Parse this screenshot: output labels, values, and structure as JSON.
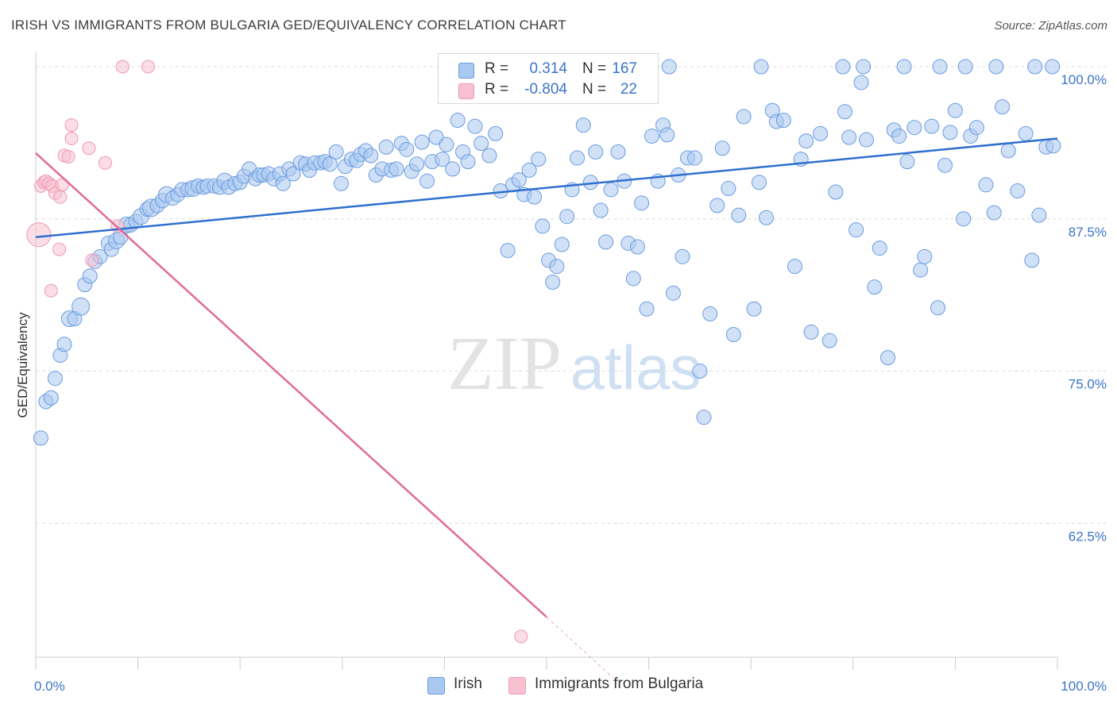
{
  "title": "IRISH VS IMMIGRANTS FROM BULGARIA GED/EQUIVALENCY CORRELATION CHART",
  "source": "Source: ZipAtlas.com",
  "watermark": {
    "zip": "ZIP",
    "atlas": "atlas"
  },
  "legend": {
    "series1": {
      "r_label": "R =",
      "r_value": "0.314",
      "n_label": "N =",
      "n_value": "167"
    },
    "series2": {
      "r_label": "R =",
      "r_value": "-0.804",
      "n_label": "N =",
      "n_value": "22"
    }
  },
  "bottom_legend": {
    "series1": "Irish",
    "series2": "Immigrants from Bulgaria"
  },
  "colors": {
    "irish_fill": "#a9c8f0",
    "irish_stroke": "#6a9be0",
    "irish_line": "#2f6fce",
    "bulgaria_fill": "#f7c1d1",
    "bulgaria_stroke": "#ef98b4",
    "bulgaria_line": "#e36b96",
    "tick_text": "#3a74c8",
    "grid": "#dcdcdc"
  },
  "chart_data": {
    "type": "scatter",
    "title": "IRISH VS IMMIGRANTS FROM BULGARIA GED/EQUIVALENCY CORRELATION CHART",
    "xlabel": "",
    "ylabel": "GED/Equivalency",
    "xlim": [
      0,
      100
    ],
    "ylim": [
      51.5,
      101.5
    ],
    "x_tick_labels": [
      {
        "value": 0,
        "label": "0.0%"
      },
      {
        "value": 100,
        "label": "100.0%"
      }
    ],
    "y_tick_labels": [
      {
        "value": 100,
        "label": "100.0%"
      },
      {
        "value": 87.5,
        "label": "87.5%"
      },
      {
        "value": 75,
        "label": "75.0%"
      },
      {
        "value": 62.5,
        "label": "62.5%"
      }
    ],
    "x_minor_ticks": [
      0,
      10,
      20,
      30,
      40,
      50,
      60,
      70,
      80,
      90,
      100
    ],
    "series": [
      {
        "name": "Irish",
        "R": 0.314,
        "N": 167,
        "trend": {
          "x": [
            0,
            100
          ],
          "y": [
            86.0,
            94.1
          ]
        },
        "points": [
          [
            0.5,
            69.5,
            9
          ],
          [
            1.0,
            72.5,
            9
          ],
          [
            1.5,
            72.8,
            9
          ],
          [
            1.9,
            74.4,
            9
          ],
          [
            2.4,
            76.3,
            9
          ],
          [
            2.8,
            77.2,
            9
          ],
          [
            3.3,
            79.3,
            10
          ],
          [
            3.8,
            79.3,
            9
          ],
          [
            4.4,
            80.3,
            11
          ],
          [
            4.8,
            82.1,
            9
          ],
          [
            5.3,
            82.8,
            9
          ],
          [
            5.8,
            84.0,
            9
          ],
          [
            6.3,
            84.4,
            9
          ],
          [
            7.1,
            85.5,
            9
          ],
          [
            7.4,
            85.0,
            9
          ],
          [
            7.9,
            85.7,
            10
          ],
          [
            8.3,
            86.0,
            9
          ],
          [
            8.9,
            87.0,
            10
          ],
          [
            9.3,
            87.0,
            9
          ],
          [
            9.8,
            87.3,
            9
          ],
          [
            10.3,
            87.7,
            10
          ],
          [
            10.9,
            88.3,
            9
          ],
          [
            11.3,
            88.4,
            11
          ],
          [
            11.9,
            88.6,
            9
          ],
          [
            12.4,
            89.0,
            9
          ],
          [
            12.8,
            89.5,
            10
          ],
          [
            13.4,
            89.2,
            9
          ],
          [
            13.9,
            89.5,
            9
          ],
          [
            14.3,
            89.9,
            9
          ],
          [
            14.9,
            89.9,
            9
          ],
          [
            15.4,
            90.0,
            10
          ],
          [
            15.9,
            90.2,
            9
          ],
          [
            16.4,
            90.1,
            9
          ],
          [
            16.8,
            90.2,
            9
          ],
          [
            17.5,
            90.2,
            9
          ],
          [
            18.0,
            90.1,
            9
          ],
          [
            18.5,
            90.6,
            10
          ],
          [
            18.9,
            90.1,
            9
          ],
          [
            19.5,
            90.4,
            9
          ],
          [
            20.0,
            90.5,
            9
          ],
          [
            20.4,
            91.0,
            9
          ],
          [
            20.9,
            91.6,
            9
          ],
          [
            21.5,
            90.8,
            9
          ],
          [
            21.9,
            91.1,
            9
          ],
          [
            22.3,
            91.1,
            9
          ],
          [
            22.8,
            91.2,
            9
          ],
          [
            23.3,
            90.8,
            9
          ],
          [
            23.9,
            91.2,
            9
          ],
          [
            24.2,
            90.4,
            9
          ],
          [
            24.8,
            91.6,
            9
          ],
          [
            25.2,
            91.2,
            9
          ],
          [
            25.9,
            92.1,
            9
          ],
          [
            26.4,
            92.0,
            9
          ],
          [
            26.8,
            91.5,
            9
          ],
          [
            27.3,
            92.1,
            9
          ],
          [
            27.9,
            92.1,
            9
          ],
          [
            28.3,
            92.2,
            9
          ],
          [
            28.8,
            92.0,
            9
          ],
          [
            29.4,
            93.0,
            9
          ],
          [
            29.9,
            90.4,
            9
          ],
          [
            30.3,
            91.8,
            9
          ],
          [
            30.9,
            92.4,
            9
          ],
          [
            31.4,
            92.3,
            9
          ],
          [
            31.8,
            92.8,
            9
          ],
          [
            32.3,
            93.1,
            9
          ],
          [
            32.8,
            92.7,
            9
          ],
          [
            33.3,
            91.1,
            9
          ],
          [
            33.9,
            91.6,
            9
          ],
          [
            34.3,
            93.4,
            9
          ],
          [
            34.8,
            91.5,
            9
          ],
          [
            35.3,
            91.6,
            9
          ],
          [
            35.8,
            93.7,
            9
          ],
          [
            36.3,
            93.2,
            9
          ],
          [
            36.8,
            91.4,
            9
          ],
          [
            37.3,
            92.0,
            9
          ],
          [
            37.8,
            93.8,
            9
          ],
          [
            38.3,
            90.6,
            9
          ],
          [
            38.8,
            92.2,
            9
          ],
          [
            39.2,
            94.2,
            9
          ],
          [
            39.8,
            92.4,
            9
          ],
          [
            40.2,
            93.6,
            9
          ],
          [
            40.8,
            91.6,
            9
          ],
          [
            41.3,
            95.6,
            9
          ],
          [
            41.8,
            93.0,
            9
          ],
          [
            42.3,
            92.2,
            9
          ],
          [
            43.0,
            95.1,
            9
          ],
          [
            43.6,
            93.7,
            9
          ],
          [
            44.4,
            92.7,
            9
          ],
          [
            45.0,
            94.5,
            9
          ],
          [
            45.5,
            89.8,
            9
          ],
          [
            46.2,
            84.9,
            9
          ],
          [
            46.7,
            90.3,
            9
          ],
          [
            47.3,
            90.7,
            9
          ],
          [
            47.8,
            89.5,
            9
          ],
          [
            48.3,
            91.5,
            9
          ],
          [
            48.8,
            89.3,
            9
          ],
          [
            49.2,
            92.4,
            9
          ],
          [
            49.6,
            86.9,
            9
          ],
          [
            50.2,
            84.1,
            9
          ],
          [
            50.6,
            82.3,
            9
          ],
          [
            51.0,
            83.6,
            9
          ],
          [
            51.5,
            85.4,
            9
          ],
          [
            52.0,
            87.7,
            9
          ],
          [
            52.5,
            89.9,
            9
          ],
          [
            53.0,
            92.5,
            9
          ],
          [
            53.6,
            95.2,
            9
          ],
          [
            54.3,
            90.5,
            9
          ],
          [
            54.8,
            93.0,
            9
          ],
          [
            55.3,
            88.2,
            9
          ],
          [
            55.8,
            85.6,
            9
          ],
          [
            56.3,
            89.9,
            9
          ],
          [
            57.0,
            93.0,
            9
          ],
          [
            57.6,
            90.6,
            9
          ],
          [
            58.0,
            85.5,
            9
          ],
          [
            58.5,
            82.6,
            9
          ],
          [
            58.9,
            85.2,
            9
          ],
          [
            59.3,
            88.8,
            9
          ],
          [
            59.8,
            80.1,
            9
          ],
          [
            60.3,
            94.3,
            9
          ],
          [
            60.9,
            90.6,
            9
          ],
          [
            61.4,
            95.2,
            9
          ],
          [
            61.8,
            94.4,
            9
          ],
          [
            62.4,
            81.4,
            9
          ],
          [
            62.9,
            91.1,
            9
          ],
          [
            63.3,
            84.4,
            9
          ],
          [
            63.8,
            92.5,
            9
          ],
          [
            64.5,
            92.5,
            9
          ],
          [
            65.0,
            75.0,
            9
          ],
          [
            65.4,
            71.2,
            9
          ],
          [
            66.0,
            79.7,
            9
          ],
          [
            66.7,
            88.6,
            9
          ],
          [
            67.2,
            93.3,
            9
          ],
          [
            67.8,
            90.0,
            9
          ],
          [
            68.3,
            78.0,
            9
          ],
          [
            68.8,
            87.8,
            9
          ],
          [
            69.3,
            95.9,
            9
          ],
          [
            70.3,
            80.1,
            9
          ],
          [
            70.8,
            90.5,
            9
          ],
          [
            71.5,
            87.6,
            9
          ],
          [
            72.1,
            96.4,
            9
          ],
          [
            72.5,
            95.5,
            9
          ],
          [
            73.2,
            95.6,
            9
          ],
          [
            74.3,
            83.6,
            9
          ],
          [
            74.9,
            92.4,
            9
          ],
          [
            75.4,
            93.9,
            9
          ],
          [
            75.9,
            78.2,
            9
          ],
          [
            76.8,
            94.5,
            9
          ],
          [
            77.7,
            77.5,
            9
          ],
          [
            78.3,
            89.7,
            9
          ],
          [
            79.2,
            96.3,
            9
          ],
          [
            79.6,
            94.2,
            9
          ],
          [
            80.3,
            86.6,
            9
          ],
          [
            80.8,
            98.7,
            9
          ],
          [
            81.3,
            94.0,
            9
          ],
          [
            82.1,
            81.9,
            9
          ],
          [
            82.6,
            85.1,
            9
          ],
          [
            83.4,
            76.1,
            9
          ],
          [
            84.0,
            94.8,
            9
          ],
          [
            84.5,
            94.3,
            9
          ],
          [
            85.3,
            92.2,
            9
          ],
          [
            86.0,
            95.0,
            9
          ],
          [
            86.6,
            83.3,
            9
          ],
          [
            87.0,
            84.4,
            9
          ],
          [
            87.7,
            95.1,
            9
          ],
          [
            88.3,
            80.2,
            9
          ],
          [
            89.0,
            91.9,
            9
          ],
          [
            89.5,
            94.6,
            9
          ],
          [
            90.0,
            96.4,
            9
          ],
          [
            90.8,
            87.5,
            9
          ],
          [
            91.5,
            94.3,
            9
          ],
          [
            92.1,
            95.0,
            9
          ],
          [
            93.0,
            90.3,
            9
          ],
          [
            93.8,
            88.0,
            9
          ],
          [
            94.6,
            96.7,
            9
          ],
          [
            95.2,
            93.1,
            9
          ],
          [
            96.1,
            89.8,
            9
          ],
          [
            96.9,
            94.5,
            9
          ],
          [
            97.5,
            84.1,
            9
          ],
          [
            98.2,
            87.8,
            9
          ],
          [
            98.9,
            93.4,
            9
          ],
          [
            99.6,
            93.5,
            9
          ],
          [
            62.0,
            100,
            9
          ],
          [
            71.0,
            100,
            9
          ],
          [
            79.0,
            100,
            9
          ],
          [
            81.0,
            100,
            9
          ],
          [
            85.0,
            100,
            9
          ],
          [
            88.5,
            100,
            9
          ],
          [
            91.0,
            100,
            9
          ],
          [
            94.0,
            100,
            9
          ],
          [
            97.8,
            100,
            9
          ],
          [
            99.5,
            100,
            9
          ]
        ]
      },
      {
        "name": "Immigrants from Bulgaria",
        "R": -0.804,
        "N": 22,
        "trend": {
          "x": [
            0,
            50
          ],
          "y": [
            92.9,
            54.8
          ]
        },
        "trend_dashed": {
          "x": [
            50,
            56.5
          ],
          "y": [
            54.8,
            49.8
          ]
        },
        "points": [
          [
            0.3,
            86.2,
            15
          ],
          [
            0.5,
            90.2,
            8
          ],
          [
            0.8,
            90.5,
            8
          ],
          [
            1.0,
            90.6,
            8
          ],
          [
            1.3,
            90.4,
            8
          ],
          [
            1.6,
            90.2,
            8
          ],
          [
            1.9,
            89.6,
            8
          ],
          [
            2.4,
            89.3,
            8
          ],
          [
            2.3,
            85.0,
            8
          ],
          [
            2.6,
            90.3,
            8
          ],
          [
            2.8,
            92.7,
            8
          ],
          [
            3.2,
            92.6,
            8
          ],
          [
            3.5,
            94.1,
            8
          ],
          [
            3.5,
            95.2,
            8
          ],
          [
            5.2,
            93.3,
            8
          ],
          [
            5.5,
            84.1,
            8
          ],
          [
            6.8,
            92.1,
            8
          ],
          [
            8.0,
            86.9,
            8
          ],
          [
            8.5,
            100,
            8
          ],
          [
            11.0,
            100,
            8
          ],
          [
            1.5,
            81.6,
            8
          ],
          [
            47.5,
            53.2,
            8
          ]
        ]
      }
    ]
  }
}
